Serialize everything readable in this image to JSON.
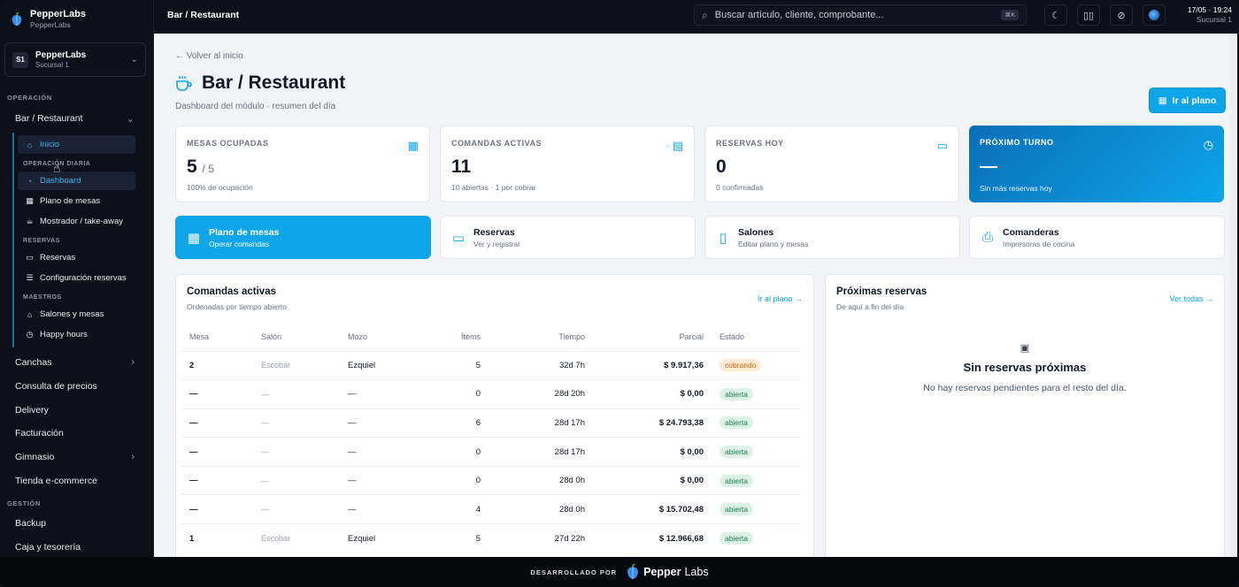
{
  "brand": {
    "name": "PepperLabs",
    "sub": "PepperLabs"
  },
  "branch": {
    "badge": "S1",
    "name": "PepperLabs",
    "sub": "Sucursal 1"
  },
  "sidebar": {
    "section_operacion": "OPERACIÓN",
    "bar": "Bar / Restaurant",
    "sub": {
      "inicio": "Inicio",
      "label_diaria": "OPERACIÓN DIARIA",
      "dashboard": "Dashboard",
      "plano": "Plano de mesas",
      "mostrador": "Mostrador / take-away",
      "label_reservas": "RESERVAS",
      "reservas": "Reservas",
      "config_reservas": "Configuración reservas",
      "label_maestros": "MAESTROS",
      "salones": "Salones y mesas",
      "happy": "Happy hours"
    },
    "canchas": "Canchas",
    "precios": "Consulta de precios",
    "delivery": "Delivery",
    "facturacion": "Facturación",
    "gimnasio": "Gimnasio",
    "tienda": "Tienda e-commerce",
    "section_gestion": "GESTIÓN",
    "backup": "Backup",
    "caja": "Caja y tesorería"
  },
  "topbar": {
    "title": "Bar / Restaurant",
    "search_placeholder": "Buscar artículo, cliente, comprobante...",
    "search_kbd": "⌘K",
    "date": "17/05 · 19:24",
    "branch": "Sucursal 1"
  },
  "page": {
    "back": "← Volver al inicio",
    "title": "Bar / Restaurant",
    "subtitle": "Dashboard del módulo · resumen del día",
    "cta": "Ir al plano"
  },
  "stats": {
    "mesas": {
      "label": "MESAS OCUPADAS",
      "value": "5",
      "suffix": "/ 5",
      "foot": "100% de ocupación"
    },
    "comandas": {
      "label": "COMANDAS ACTIVAS",
      "value": "11",
      "foot": "10 abiertas · 1 por cobrar"
    },
    "reservas": {
      "label": "RESERVAS HOY",
      "value": "0",
      "foot": "0 confirmadas"
    },
    "turno": {
      "label": "PRÓXIMO TURNO",
      "foot": "Sin más reservas hoy"
    }
  },
  "quick": {
    "plano": {
      "title": "Plano de mesas",
      "sub": "Operar comandas"
    },
    "reservas": {
      "title": "Reservas",
      "sub": "Ver y registrar"
    },
    "salones": {
      "title": "Salones",
      "sub": "Editar plano y mesas"
    },
    "comanderas": {
      "title": "Comanderas",
      "sub": "Impresoras de cocina"
    }
  },
  "comandas": {
    "title": "Comandas activas",
    "sub": "Ordenadas por tiempo abierto",
    "link": "Ir al plano →",
    "headers": {
      "mesa": "Mesa",
      "salon": "Salón",
      "mozo": "Mozo",
      "items": "Ítems",
      "tiempo": "Tiempo",
      "parcial": "Parcial",
      "estado": "Estado"
    },
    "rows": [
      {
        "mesa": "2",
        "salon": "Escobar",
        "mozo": "Ezquiel",
        "items": "5",
        "tiempo": "32d 7h",
        "parcial": "$ 9.917,36",
        "estado": "cobrando"
      },
      {
        "mesa": "—",
        "salon": "—",
        "mozo": "—",
        "items": "0",
        "tiempo": "28d 20h",
        "parcial": "$ 0,00",
        "estado": "abierta"
      },
      {
        "mesa": "—",
        "salon": "—",
        "mozo": "—",
        "items": "6",
        "tiempo": "28d 17h",
        "parcial": "$ 24.793,38",
        "estado": "abierta"
      },
      {
        "mesa": "—",
        "salon": "—",
        "mozo": "—",
        "items": "0",
        "tiempo": "28d 17h",
        "parcial": "$ 0,00",
        "estado": "abierta"
      },
      {
        "mesa": "—",
        "salon": "—",
        "mozo": "—",
        "items": "0",
        "tiempo": "28d 0h",
        "parcial": "$ 0,00",
        "estado": "abierta"
      },
      {
        "mesa": "—",
        "salon": "—",
        "mozo": "—",
        "items": "4",
        "tiempo": "28d 0h",
        "parcial": "$ 15.702,48",
        "estado": "abierta"
      },
      {
        "mesa": "1",
        "salon": "Escobar",
        "mozo": "Ezquiel",
        "items": "5",
        "tiempo": "27d 22h",
        "parcial": "$ 12.966,68",
        "estado": "abierta"
      }
    ]
  },
  "reservas_panel": {
    "title": "Próximas reservas",
    "sub": "De aquí a fin del día",
    "link": "Ver todas →",
    "empty_title": "Sin reservas próximas",
    "empty_sub": "No hay reservas pendientes para el resto del día."
  },
  "footer": {
    "dev": "DESARROLLADO POR",
    "logo_a": "Pepper",
    "logo_b": "Labs"
  },
  "colors": {
    "accent": "#0ea5e9",
    "sidebar_bg": "#0d101b",
    "main_bg": "#f3f4f7"
  }
}
